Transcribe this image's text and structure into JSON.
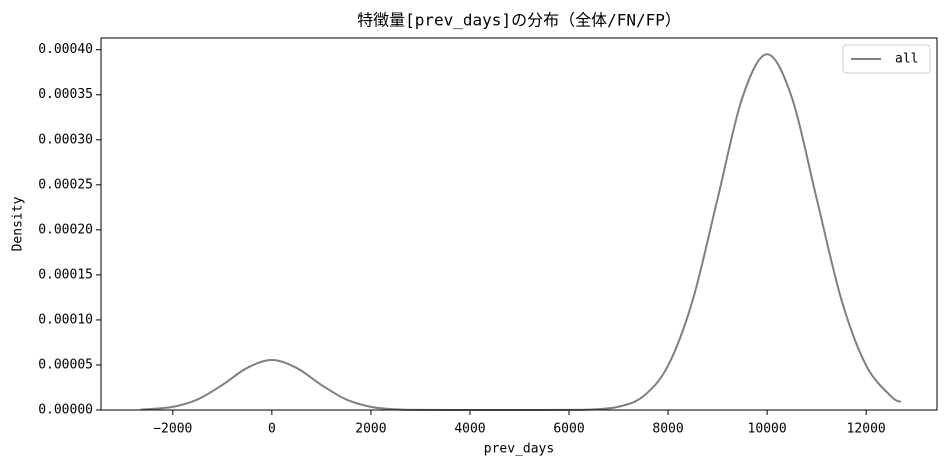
{
  "chart_data": {
    "type": "line",
    "title": "特徴量[prev_days]の分布（全体/FN/FP）",
    "x_label": "prev_days",
    "y_label": "Density",
    "x": [
      -2650,
      -2000,
      -1500,
      -1000,
      -500,
      0,
      500,
      1000,
      1500,
      2000,
      2500,
      3000,
      4000,
      5000,
      6000,
      6500,
      7000,
      7500,
      8000,
      8500,
      9000,
      9500,
      10000,
      10500,
      11000,
      11500,
      12000,
      12500,
      12700
    ],
    "series": [
      {
        "name": "all",
        "color": "#808080",
        "values": [
          4e-07,
          3.5e-06,
          1.17e-05,
          2.78e-05,
          4.67e-05,
          5.55e-05,
          4.67e-05,
          2.78e-05,
          1.17e-05,
          3.5e-06,
          7e-07,
          1e-07,
          0,
          0,
          1e-07,
          7e-07,
          3.6e-06,
          1.53e-05,
          4.93e-05,
          0.0001225,
          0.0002347,
          0.0003468,
          0.000395,
          0.0003468,
          0.0002347,
          0.0001225,
          4.93e-05,
          1.53e-05,
          8.9e-06
        ]
      }
    ],
    "xlim": [
      -3450,
      13430
    ],
    "xticks": [
      {
        "value": -2000,
        "label": "−2000"
      },
      0,
      2000,
      4000,
      6000,
      8000,
      10000,
      12000
    ],
    "ylim": [
      0,
      0.000413
    ],
    "yticks": [
      {
        "value": 0,
        "label": "0.00000"
      },
      {
        "value": 5e-05,
        "label": "0.00005"
      },
      {
        "value": 0.0001,
        "label": "0.00010"
      },
      {
        "value": 0.00015,
        "label": "0.00015"
      },
      {
        "value": 0.0002,
        "label": "0.00020"
      },
      {
        "value": 0.00025,
        "label": "0.00025"
      },
      {
        "value": 0.0003,
        "label": "0.00030"
      },
      {
        "value": 0.00035,
        "label": "0.00035"
      },
      {
        "value": 0.0004,
        "label": "0.00040"
      }
    ],
    "grid": false,
    "legend": "upper right"
  }
}
